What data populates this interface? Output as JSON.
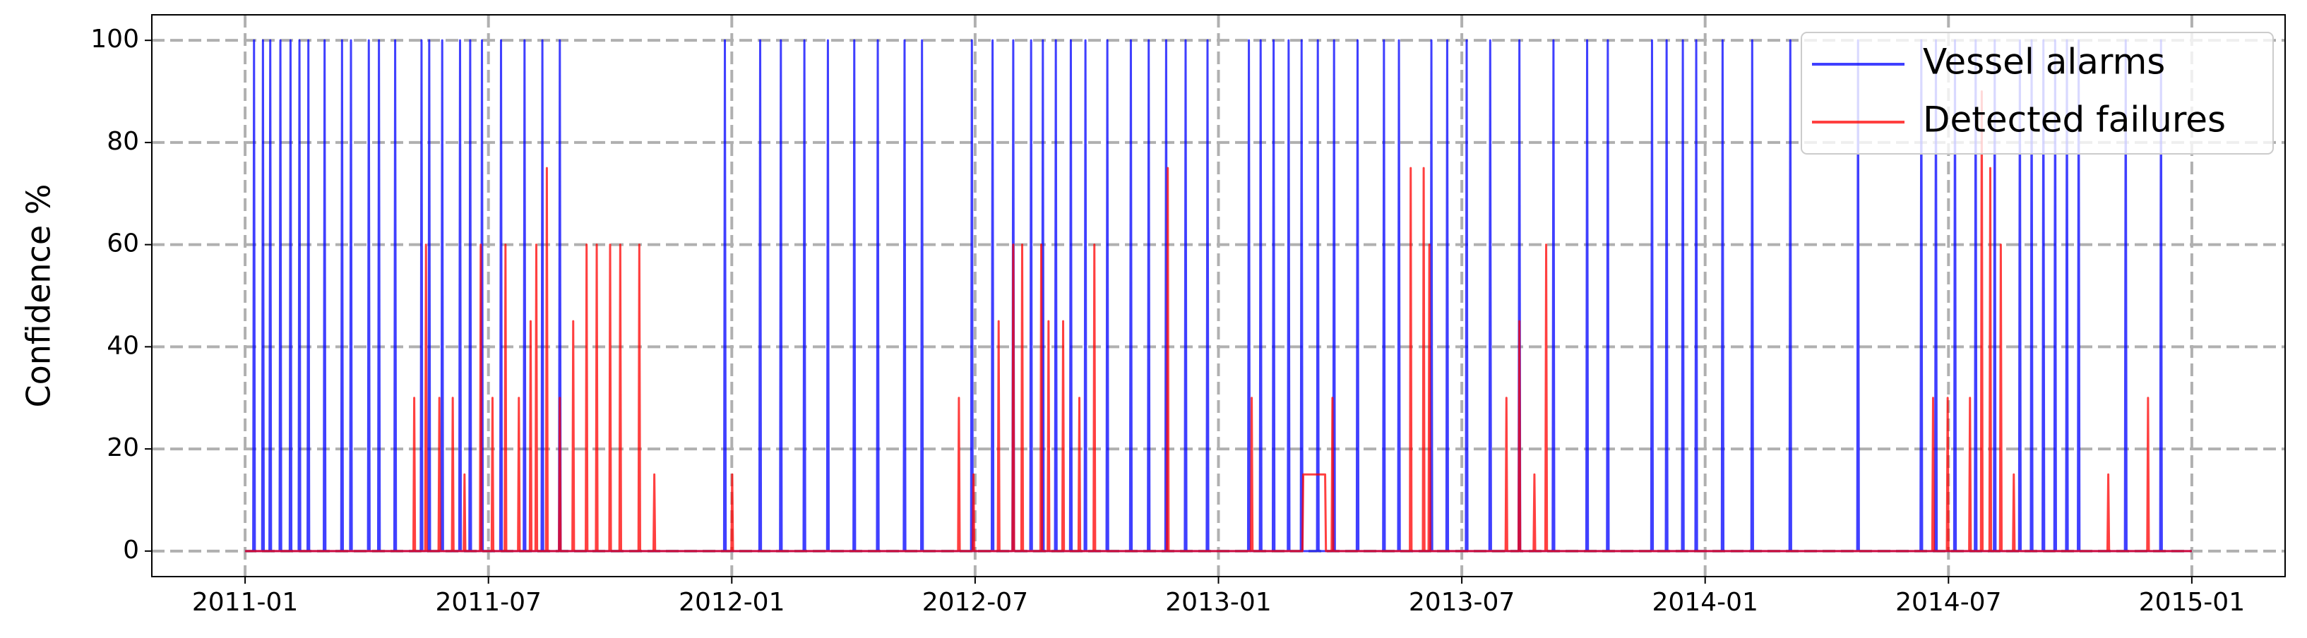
{
  "chart_data": {
    "type": "line",
    "ylabel": "Confidence %",
    "xlim": [
      -2.3,
      50.3
    ],
    "xticks": [
      {
        "value": 0,
        "label": "2011-01"
      },
      {
        "value": 6,
        "label": "2011-07"
      },
      {
        "value": 12,
        "label": "2012-01"
      },
      {
        "value": 18,
        "label": "2012-07"
      },
      {
        "value": 24,
        "label": "2013-01"
      },
      {
        "value": 30,
        "label": "2013-07"
      },
      {
        "value": 36,
        "label": "2014-01"
      },
      {
        "value": 42,
        "label": "2014-07"
      },
      {
        "value": 48,
        "label": "2015-01"
      }
    ],
    "ylim": [
      -5,
      105
    ],
    "yticks": [
      0,
      20,
      40,
      60,
      80,
      100
    ],
    "grid": true,
    "legend": "upper right",
    "series": [
      {
        "name": "Vessel alarms",
        "color": "#0000ff",
        "x": [
          0,
          0.2,
          0.22,
          0.24,
          0.42,
          0.44,
          0.46,
          0.6,
          0.62,
          0.64,
          0.85,
          0.87,
          0.89,
          1.1,
          1.12,
          1.14,
          1.32,
          1.34,
          1.36,
          1.54,
          1.56,
          1.58,
          1.94,
          1.96,
          1.98,
          2.37,
          2.39,
          2.41,
          2.59,
          2.61,
          2.63,
          3.03,
          3.05,
          3.07,
          3.28,
          3.3,
          3.32,
          3.68,
          3.7,
          3.72,
          4.33,
          4.35,
          4.37,
          4.52,
          4.54,
          4.56,
          4.84,
          4.86,
          4.88,
          5.28,
          5.3,
          5.32,
          5.53,
          5.55,
          5.57,
          5.82,
          5.84,
          5.86,
          6.29,
          6.31,
          6.33,
          6.87,
          6.89,
          6.91,
          7.31,
          7.33,
          7.35,
          7.74,
          7.76,
          7.78,
          11.81,
          11.83,
          11.85,
          12.68,
          12.7,
          12.72,
          13.19,
          13.21,
          13.23,
          13.77,
          13.79,
          13.81,
          14.35,
          14.37,
          14.39,
          15.0,
          15.02,
          15.04,
          15.58,
          15.6,
          15.62,
          16.24,
          16.26,
          16.28,
          16.67,
          16.69,
          16.71,
          17.9,
          17.92,
          17.94,
          18.41,
          18.43,
          18.45,
          18.92,
          18.94,
          18.96,
          19.36,
          19.38,
          19.4,
          19.65,
          19.67,
          19.69,
          19.97,
          19.99,
          20.01,
          20.34,
          20.36,
          20.38,
          20.7,
          20.72,
          20.74,
          21.24,
          21.26,
          21.28,
          21.82,
          21.84,
          21.86,
          22.26,
          22.28,
          22.3,
          22.69,
          22.71,
          22.73,
          23.17,
          23.19,
          23.21,
          23.71,
          23.73,
          23.75,
          24.73,
          24.75,
          24.77,
          25.02,
          25.04,
          25.06,
          25.34,
          25.36,
          25.38,
          25.71,
          25.73,
          25.75,
          26.03,
          26.05,
          26.07,
          26.43,
          26.45,
          26.47,
          26.83,
          26.85,
          26.87,
          27.41,
          27.43,
          27.45,
          28.06,
          28.08,
          28.1,
          28.43,
          28.45,
          28.47,
          29.23,
          29.25,
          29.27,
          29.62,
          29.64,
          29.66,
          30.1,
          30.12,
          30.14,
          30.68,
          30.7,
          30.72,
          31.4,
          31.42,
          31.44,
          32.24,
          32.26,
          32.28,
          33.07,
          33.09,
          33.11,
          33.58,
          33.6,
          33.62,
          34.67,
          34.69,
          34.71,
          35.03,
          35.05,
          35.07,
          35.43,
          35.45,
          35.47,
          35.76,
          35.78,
          35.8,
          36.41,
          36.43,
          36.45,
          37.14,
          37.16,
          37.18,
          38.08,
          38.1,
          38.12,
          39.75,
          39.77,
          39.79,
          41.31,
          41.33,
          41.35,
          41.67,
          41.69,
          41.71,
          42.14,
          42.16,
          42.18,
          42.65,
          42.67,
          42.69,
          43.12,
          43.14,
          43.16,
          43.74,
          43.76,
          43.78,
          44.03,
          44.05,
          44.07,
          44.32,
          44.34,
          44.36,
          44.61,
          44.63,
          44.65,
          44.9,
          44.92,
          44.94,
          45.19,
          45.21,
          45.23,
          46.35,
          46.37,
          46.39,
          47.22,
          47.24,
          47.26,
          48
        ],
        "values": [
          0,
          0,
          100,
          0,
          0,
          100,
          0,
          0,
          100,
          0,
          0,
          100,
          0,
          0,
          100,
          0,
          0,
          100,
          0,
          0,
          100,
          0,
          0,
          100,
          0,
          0,
          100,
          0,
          0,
          100,
          0,
          0,
          100,
          0,
          0,
          100,
          0,
          0,
          100,
          0,
          0,
          100,
          0,
          0,
          100,
          0,
          0,
          100,
          0,
          0,
          100,
          0,
          0,
          100,
          0,
          0,
          100,
          0,
          0,
          100,
          0,
          0,
          100,
          0,
          0,
          100,
          0,
          0,
          100,
          0,
          0,
          100,
          0,
          0,
          100,
          0,
          0,
          100,
          0,
          0,
          100,
          0,
          0,
          100,
          0,
          0,
          100,
          0,
          0,
          100,
          0,
          0,
          100,
          0,
          0,
          100,
          0,
          0,
          100,
          0,
          0,
          100,
          0,
          0,
          100,
          0,
          0,
          100,
          0,
          0,
          100,
          0,
          0,
          100,
          0,
          0,
          100,
          0,
          0,
          100,
          0,
          0,
          100,
          0,
          0,
          100,
          0,
          0,
          100,
          0,
          0,
          100,
          0,
          0,
          100,
          0,
          0,
          100,
          0,
          0,
          100,
          0,
          0,
          100,
          0,
          0,
          100,
          0,
          0,
          100,
          0,
          0,
          100,
          0,
          0,
          100,
          0,
          0,
          100,
          0,
          0,
          100,
          0,
          0,
          100,
          0,
          0,
          100,
          0,
          0,
          100,
          0,
          0,
          100,
          0,
          0,
          100,
          0,
          0,
          100,
          0,
          0,
          100,
          0,
          0,
          100,
          0,
          0,
          100,
          0,
          0,
          100,
          0,
          0,
          100,
          0,
          0,
          100,
          0,
          0,
          100,
          0,
          0,
          100,
          0,
          0,
          100,
          0,
          0,
          100,
          0,
          0,
          100,
          0,
          0,
          100,
          0,
          0,
          100,
          0,
          0,
          100,
          0,
          0,
          100,
          0,
          0,
          100,
          0,
          0,
          100,
          0,
          0,
          100,
          0,
          0,
          100,
          0,
          0,
          100,
          0,
          0,
          100,
          0,
          0,
          100,
          0,
          0,
          100,
          0,
          0,
          100,
          0,
          0,
          100,
          0,
          0
        ]
      },
      {
        "name": "Detected failures",
        "color": "#ff0000",
        "x": [
          0,
          4.15,
          4.17,
          4.19,
          4.44,
          4.46,
          4.48,
          4.77,
          4.79,
          4.81,
          5.1,
          5.12,
          5.14,
          5.39,
          5.41,
          5.43,
          5.79,
          5.81,
          5.83,
          6.08,
          6.1,
          6.12,
          6.4,
          6.42,
          6.44,
          6.73,
          6.75,
          6.77,
          7.02,
          7.04,
          7.06,
          7.16,
          7.18,
          7.2,
          7.42,
          7.44,
          7.46,
          7.74,
          7.76,
          7.78,
          8.07,
          8.09,
          8.11,
          8.4,
          8.42,
          8.44,
          8.65,
          8.67,
          8.69,
          8.98,
          9.0,
          9.02,
          9.23,
          9.25,
          9.27,
          9.7,
          9.72,
          9.74,
          10.07,
          10.09,
          10.11,
          11.99,
          12.01,
          12.03,
          17.58,
          17.6,
          17.62,
          17.94,
          17.96,
          17.98,
          18.56,
          18.58,
          18.6,
          18.92,
          18.94,
          18.96,
          19.14,
          19.16,
          19.18,
          19.61,
          19.63,
          19.65,
          19.79,
          19.81,
          19.83,
          20.15,
          20.17,
          20.19,
          20.55,
          20.57,
          20.59,
          20.92,
          20.94,
          20.96,
          22.73,
          22.75,
          22.77,
          24.8,
          24.82,
          24.84,
          26.07,
          26.09,
          26.63,
          26.65,
          26.79,
          26.81,
          26.83,
          28.72,
          28.74,
          28.76,
          29.04,
          29.06,
          29.08,
          29.18,
          29.2,
          29.22,
          31.08,
          31.1,
          31.12,
          31.4,
          31.42,
          31.44,
          31.77,
          31.79,
          31.81,
          32.06,
          32.08,
          32.1,
          41.6,
          41.62,
          41.64,
          41.96,
          41.98,
          42.0,
          42.51,
          42.53,
          42.55,
          42.8,
          42.82,
          42.84,
          43.01,
          43.03,
          43.05,
          43.27,
          43.29,
          43.31,
          43.59,
          43.61,
          43.63,
          45.92,
          45.94,
          45.96,
          46.9,
          46.92,
          46.94,
          48
        ],
        "values": [
          0,
          0,
          30,
          0,
          0,
          60,
          0,
          0,
          30,
          0,
          0,
          30,
          0,
          0,
          15,
          0,
          0,
          60,
          0,
          0,
          30,
          0,
          0,
          60,
          0,
          0,
          30,
          0,
          0,
          45,
          0,
          0,
          60,
          0,
          0,
          75,
          0,
          0,
          30,
          0,
          0,
          45,
          0,
          0,
          60,
          0,
          0,
          60,
          0,
          0,
          60,
          0,
          0,
          60,
          0,
          0,
          60,
          0,
          0,
          15,
          0,
          0,
          15,
          0,
          0,
          30,
          0,
          0,
          15,
          0,
          0,
          45,
          0,
          0,
          60,
          0,
          0,
          60,
          0,
          0,
          60,
          0,
          0,
          45,
          0,
          0,
          45,
          0,
          0,
          30,
          0,
          0,
          60,
          0,
          0,
          75,
          0,
          0,
          30,
          0,
          0,
          15,
          15,
          0,
          0,
          30,
          0,
          0,
          75,
          0,
          0,
          75,
          0,
          0,
          60,
          0,
          0,
          30,
          0,
          0,
          45,
          0,
          0,
          15,
          0,
          0,
          60,
          0,
          0,
          30,
          0,
          0,
          30,
          0,
          0,
          30,
          0,
          0,
          90,
          0,
          0,
          75,
          0,
          0,
          60,
          0,
          0,
          15,
          0,
          0,
          15,
          0,
          0,
          30,
          0,
          0
        ]
      }
    ]
  }
}
